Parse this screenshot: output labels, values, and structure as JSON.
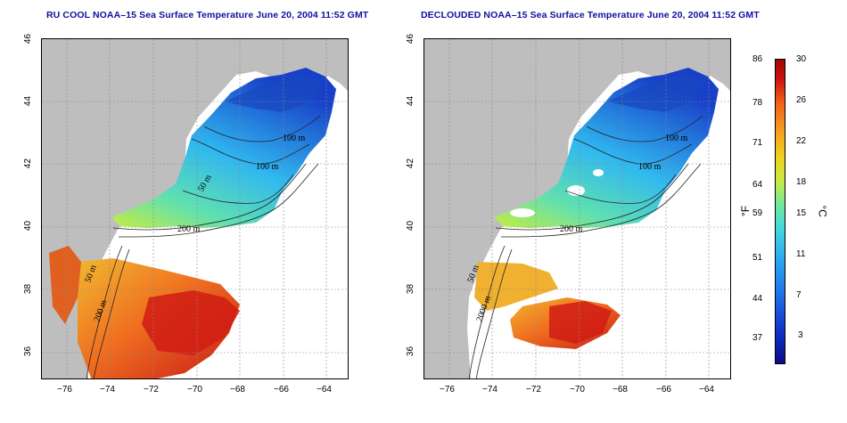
{
  "left_panel": {
    "title": "RU COOL NOAA–15 Sea Surface Temperature June 20, 2004 11:52 GMT",
    "contour_labels": [
      "100 m",
      "100 m",
      "50 m",
      "200 m",
      "50 m",
      "200 m"
    ]
  },
  "right_panel": {
    "title": "DECLOUDED NOAA–15 Sea Surface Temperature June 20, 2004 11:52 GMT",
    "contour_labels": [
      "100 m",
      "100 m",
      "200 m",
      "50 m",
      "2000 m"
    ]
  },
  "axes": {
    "x_ticks": [
      "−76",
      "−74",
      "−72",
      "−70",
      "−68",
      "−66",
      "−64"
    ],
    "y_ticks": [
      "36",
      "38",
      "40",
      "42",
      "44",
      "46"
    ]
  },
  "colorbar": {
    "fahrenheit_labels": [
      "86",
      "78",
      "71",
      "64",
      "59",
      "51",
      "44",
      "37"
    ],
    "celsius_labels": [
      "30",
      "26",
      "22",
      "18",
      "15",
      "11",
      "7",
      "3"
    ],
    "fahrenheit_unit": "°F",
    "celsius_unit": "°C"
  },
  "colors": {
    "land": "#bebebe",
    "title": "#1010a0",
    "cold": "#1030c8",
    "warm": "#d01818"
  }
}
